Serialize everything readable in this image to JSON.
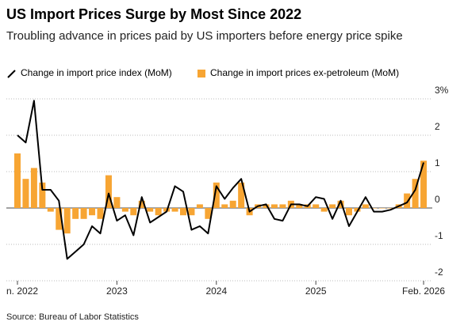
{
  "chart_data": {
    "type": "bar+line",
    "title": "US Import Prices Surge by Most Since 2022",
    "subtitle": "Troubling advance in prices paid by US importers before energy price spike",
    "source": "Source: Bureau of Labor Statistics",
    "x": [
      "2022-01",
      "2022-02",
      "2022-03",
      "2022-04",
      "2022-05",
      "2022-06",
      "2022-07",
      "2022-08",
      "2022-09",
      "2022-10",
      "2022-11",
      "2022-12",
      "2023-01",
      "2023-02",
      "2023-03",
      "2023-04",
      "2023-05",
      "2023-06",
      "2023-07",
      "2023-08",
      "2023-09",
      "2023-10",
      "2023-11",
      "2023-12",
      "2024-01",
      "2024-02",
      "2024-03",
      "2024-04",
      "2024-05",
      "2024-06",
      "2024-07",
      "2024-08",
      "2024-09",
      "2024-10",
      "2024-11",
      "2024-12",
      "2025-01",
      "2025-02",
      "2025-03",
      "2025-04",
      "2025-05",
      "2025-06",
      "2025-07",
      "2025-08",
      "2025-09",
      "2025-10",
      "2025-11",
      "2025-12",
      "2026-01",
      "2026-02"
    ],
    "series": [
      {
        "name": "Change in import price index (MoM)",
        "type": "line",
        "color": "#000000",
        "values": [
          2.0,
          1.8,
          2.95,
          0.5,
          0.5,
          0.2,
          -1.4,
          -1.2,
          -1.0,
          -0.5,
          -0.7,
          0.4,
          -0.35,
          -0.2,
          -0.75,
          0.3,
          -0.4,
          -0.25,
          -0.1,
          0.6,
          0.45,
          -0.6,
          -0.5,
          -0.7,
          0.6,
          0.25,
          0.55,
          0.8,
          -0.1,
          0.05,
          0.1,
          -0.3,
          -0.35,
          0.1,
          0.1,
          0.05,
          0.3,
          0.25,
          -0.3,
          0.2,
          -0.5,
          -0.1,
          0.3,
          -0.1,
          -0.1,
          -0.05,
          0.05,
          0.15,
          0.5,
          1.25
        ]
      },
      {
        "name": "Change in import prices ex-petroleum (MoM)",
        "type": "bar",
        "color": "#f7a533",
        "values": [
          1.5,
          0.8,
          1.1,
          0.7,
          -0.1,
          -0.6,
          -0.7,
          -0.3,
          -0.3,
          -0.2,
          -0.3,
          0.9,
          0.3,
          -0.1,
          -0.2,
          0.2,
          -0.1,
          -0.2,
          -0.1,
          -0.1,
          -0.2,
          -0.2,
          0.1,
          -0.3,
          0.7,
          0.1,
          0.2,
          0.7,
          -0.2,
          0.1,
          0.1,
          0.1,
          0.1,
          0.2,
          0.1,
          0.1,
          0.1,
          -0.1,
          0.1,
          0.2,
          -0.2,
          -0.1,
          0.1,
          0.0,
          0.0,
          0.0,
          0.1,
          0.4,
          0.8,
          1.3
        ]
      }
    ],
    "ylim": [
      -2,
      3
    ],
    "yticks": [
      -2,
      -1,
      0,
      1,
      2,
      {
        "value": 3,
        "label": "3%"
      }
    ],
    "xticks": [
      {
        "value": "2022-01",
        "label": "n. 2022"
      },
      {
        "value": "2023-01",
        "label": "2023"
      },
      {
        "value": "2024-01",
        "label": "2024"
      },
      {
        "value": "2025-01",
        "label": "2025"
      },
      {
        "value": "2026-02",
        "label": "Feb. 2026"
      }
    ],
    "grid": true,
    "legend": "top"
  }
}
